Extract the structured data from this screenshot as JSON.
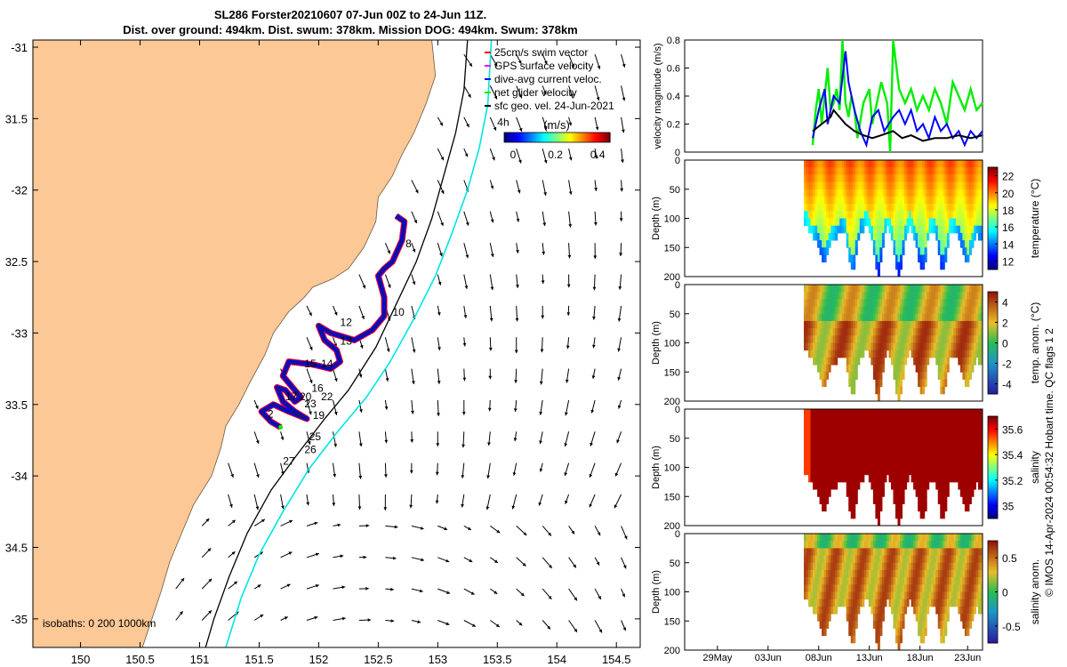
{
  "figure": {
    "title_line1": "SL286 Forster20210607 07-Jun 00Z to 24-Jun 11Z.",
    "title_line2": "Dist. over ground: 494km. Dist. swum: 378km. Mission DOG: 494km. Swum: 378km",
    "side_note": "© IMOS 14-Apr-2024 00:54:32 Hobart time. QC flags 1  2"
  },
  "chart_data": [
    {
      "id": "map",
      "type": "scatter",
      "title": "",
      "xlim": [
        149.6,
        154.7
      ],
      "ylim": [
        -35.2,
        -30.95
      ],
      "xticks": [
        150,
        150.5,
        151,
        151.5,
        152,
        152.5,
        153,
        153.5,
        154,
        154.5
      ],
      "xtick_labels": [
        "150",
        "150.5",
        "151",
        "151.5",
        "152",
        "152.5",
        "153",
        "153.5",
        "154",
        "154.5"
      ],
      "yticks": [
        -31,
        -31.5,
        -32,
        -32.5,
        -33,
        -33.5,
        -34,
        -34.5,
        -35
      ],
      "ytick_labels": [
        "-31",
        "31.5",
        "-32",
        "32.5",
        "-33",
        "33.5",
        "-34",
        "34.5",
        "-35"
      ],
      "legend": [
        {
          "label": "25cm/s swim vector",
          "color": "#ff0000"
        },
        {
          "label": "GPS surface velocity",
          "color": "#ff00ff"
        },
        {
          "label": "dive-avg current veloc.",
          "color": "#0000ff"
        },
        {
          "label": "net glider velocity",
          "color": "#00ee00"
        },
        {
          "label": "sfc geo. vel. 24-Jun-2021",
          "color": "#000000"
        }
      ],
      "colorbar": {
        "label": "(m/s)",
        "ticks": [
          0,
          0.2,
          0.4
        ],
        "tick_labels": [
          "0",
          "0.2",
          "0.4"
        ],
        "range": [
          0,
          0.5
        ]
      },
      "isobaths_note": "isobaths: 0   200  1000km",
      "coastline": [
        [
          152.95,
          -30.95
        ],
        [
          152.98,
          -31.2
        ],
        [
          152.9,
          -31.4
        ],
        [
          152.8,
          -31.6
        ],
        [
          152.7,
          -31.75
        ],
        [
          152.62,
          -31.9
        ],
        [
          152.5,
          -32.05
        ],
        [
          152.48,
          -32.22
        ],
        [
          152.38,
          -32.4
        ],
        [
          152.25,
          -32.55
        ],
        [
          152.12,
          -32.62
        ],
        [
          151.95,
          -32.68
        ],
        [
          151.88,
          -32.75
        ],
        [
          151.75,
          -32.85
        ],
        [
          151.62,
          -33.0
        ],
        [
          151.55,
          -33.15
        ],
        [
          151.42,
          -33.35
        ],
        [
          151.33,
          -33.5
        ],
        [
          151.22,
          -33.65
        ],
        [
          151.18,
          -33.8
        ],
        [
          151.1,
          -34.0
        ],
        [
          150.95,
          -34.2
        ],
        [
          150.85,
          -34.4
        ],
        [
          150.75,
          -34.6
        ],
        [
          150.68,
          -34.8
        ],
        [
          150.6,
          -35.0
        ],
        [
          150.52,
          -35.2
        ]
      ],
      "isobath_200": [
        [
          153.25,
          -30.95
        ],
        [
          153.22,
          -31.3
        ],
        [
          153.15,
          -31.6
        ],
        [
          153.05,
          -31.9
        ],
        [
          152.95,
          -32.2
        ],
        [
          152.82,
          -32.5
        ],
        [
          152.65,
          -32.8
        ],
        [
          152.48,
          -33.1
        ],
        [
          152.25,
          -33.4
        ],
        [
          152.05,
          -33.6
        ],
        [
          151.82,
          -33.85
        ],
        [
          151.6,
          -34.1
        ],
        [
          151.4,
          -34.4
        ],
        [
          151.25,
          -34.7
        ],
        [
          151.12,
          -35.0
        ],
        [
          151.05,
          -35.2
        ]
      ],
      "isobath_1000": [
        [
          153.45,
          -30.95
        ],
        [
          153.42,
          -31.4
        ],
        [
          153.35,
          -31.7
        ],
        [
          153.25,
          -32.0
        ],
        [
          153.12,
          -32.3
        ],
        [
          152.98,
          -32.6
        ],
        [
          152.8,
          -32.9
        ],
        [
          152.6,
          -33.2
        ],
        [
          152.4,
          -33.45
        ],
        [
          152.15,
          -33.7
        ],
        [
          151.92,
          -33.95
        ],
        [
          151.7,
          -34.25
        ],
        [
          151.5,
          -34.55
        ],
        [
          151.35,
          -34.85
        ],
        [
          151.22,
          -35.2
        ]
      ],
      "track": [
        [
          152.65,
          -32.18
        ],
        [
          152.72,
          -32.22
        ],
        [
          152.7,
          -32.35
        ],
        [
          152.62,
          -32.5
        ],
        [
          152.55,
          -32.55
        ],
        [
          152.5,
          -32.6
        ],
        [
          152.55,
          -32.75
        ],
        [
          152.55,
          -32.88
        ],
        [
          152.45,
          -32.98
        ],
        [
          152.3,
          -33.05
        ],
        [
          152.1,
          -33.0
        ],
        [
          152.0,
          -32.95
        ],
        [
          152.05,
          -33.05
        ],
        [
          152.15,
          -33.12
        ],
        [
          152.18,
          -33.2
        ],
        [
          152.1,
          -33.25
        ],
        [
          151.95,
          -33.22
        ],
        [
          151.75,
          -33.2
        ],
        [
          151.7,
          -33.3
        ],
        [
          151.78,
          -33.38
        ],
        [
          151.85,
          -33.45
        ],
        [
          151.8,
          -33.48
        ],
        [
          151.72,
          -33.4
        ],
        [
          151.65,
          -33.38
        ],
        [
          151.7,
          -33.48
        ],
        [
          151.8,
          -33.55
        ],
        [
          151.9,
          -33.6
        ],
        [
          151.75,
          -33.55
        ],
        [
          151.62,
          -33.5
        ],
        [
          151.52,
          -33.55
        ],
        [
          151.6,
          -33.62
        ],
        [
          151.68,
          -33.66
        ]
      ],
      "track_labels": [
        {
          "text": "8",
          "x": 152.73,
          "y": -32.4
        },
        {
          "text": "10",
          "x": 152.62,
          "y": -32.88
        },
        {
          "text": "12",
          "x": 152.18,
          "y": -32.95
        },
        {
          "text": "13",
          "x": 152.18,
          "y": -33.08
        },
        {
          "text": "14",
          "x": 152.02,
          "y": -33.24
        },
        {
          "text": "15",
          "x": 151.88,
          "y": -33.24
        },
        {
          "text": "16",
          "x": 151.94,
          "y": -33.41
        },
        {
          "text": "17",
          "x": 151.72,
          "y": -33.47
        },
        {
          "text": "20",
          "x": 151.84,
          "y": -33.47
        },
        {
          "text": "22",
          "x": 152.02,
          "y": -33.47
        },
        {
          "text": "23",
          "x": 151.88,
          "y": -33.52
        },
        {
          "text": "19",
          "x": 151.95,
          "y": -33.6
        },
        {
          "text": "2",
          "x": 151.57,
          "y": -33.59
        },
        {
          "text": "25",
          "x": 151.92,
          "y": -33.75
        },
        {
          "text": "26",
          "x": 151.88,
          "y": -33.84
        },
        {
          "text": "27",
          "x": 151.7,
          "y": -33.92
        },
        {
          "text": "4h",
          "x": 153.5,
          "y": -31.55
        }
      ]
    },
    {
      "id": "velocity",
      "type": "line",
      "ylabel": "velocity magnitude (m/s)",
      "ylim": [
        0,
        0.8
      ],
      "yticks": [
        0,
        0.2,
        0.4,
        0.6,
        0.8
      ],
      "ytick_labels": [
        "0",
        "0.2",
        "0.4",
        "0.6",
        "0.8"
      ],
      "xlim": [
        0,
        1
      ],
      "series": [
        {
          "color": "#00ee00",
          "values": [
            [
              0.43,
              0.05
            ],
            [
              0.44,
              0.3
            ],
            [
              0.45,
              0.45
            ],
            [
              0.46,
              0.2
            ],
            [
              0.47,
              0.4
            ],
            [
              0.48,
              0.6
            ],
            [
              0.49,
              0.3
            ],
            [
              0.5,
              0.35
            ],
            [
              0.51,
              0.45
            ],
            [
              0.52,
              0.3
            ],
            [
              0.53,
              0.8
            ],
            [
              0.54,
              0.35
            ],
            [
              0.55,
              0.25
            ],
            [
              0.56,
              0.4
            ],
            [
              0.57,
              0.3
            ],
            [
              0.58,
              0.1
            ],
            [
              0.6,
              0.35
            ],
            [
              0.62,
              0.45
            ],
            [
              0.63,
              0.2
            ],
            [
              0.65,
              0.4
            ],
            [
              0.66,
              0.5
            ],
            [
              0.68,
              0.35
            ],
            [
              0.69,
              0.0
            ],
            [
              0.7,
              0.8
            ],
            [
              0.72,
              0.45
            ],
            [
              0.74,
              0.35
            ],
            [
              0.76,
              0.45
            ],
            [
              0.78,
              0.3
            ],
            [
              0.8,
              0.4
            ],
            [
              0.82,
              0.3
            ],
            [
              0.84,
              0.45
            ],
            [
              0.86,
              0.35
            ],
            [
              0.88,
              0.2
            ],
            [
              0.9,
              0.5
            ],
            [
              0.92,
              0.4
            ],
            [
              0.94,
              0.3
            ],
            [
              0.96,
              0.45
            ],
            [
              0.98,
              0.3
            ],
            [
              1.0,
              0.35
            ]
          ]
        },
        {
          "color": "#0000ff",
          "values": [
            [
              0.43,
              0.1
            ],
            [
              0.45,
              0.3
            ],
            [
              0.47,
              0.45
            ],
            [
              0.48,
              0.2
            ],
            [
              0.5,
              0.4
            ],
            [
              0.52,
              0.35
            ],
            [
              0.54,
              0.72
            ],
            [
              0.55,
              0.5
            ],
            [
              0.57,
              0.3
            ],
            [
              0.59,
              0.15
            ],
            [
              0.61,
              0.05
            ],
            [
              0.63,
              0.25
            ],
            [
              0.65,
              0.3
            ],
            [
              0.67,
              0.15
            ],
            [
              0.7,
              0.25
            ],
            [
              0.72,
              0.3
            ],
            [
              0.74,
              0.2
            ],
            [
              0.76,
              0.3
            ],
            [
              0.78,
              0.15
            ],
            [
              0.8,
              0.2
            ],
            [
              0.82,
              0.1
            ],
            [
              0.84,
              0.25
            ],
            [
              0.86,
              0.15
            ],
            [
              0.88,
              0.2
            ],
            [
              0.9,
              0.1
            ],
            [
              0.92,
              0.15
            ],
            [
              0.94,
              0.05
            ],
            [
              0.96,
              0.15
            ],
            [
              0.98,
              0.1
            ],
            [
              1.0,
              0.15
            ]
          ]
        },
        {
          "color": "#000000",
          "values": [
            [
              0.43,
              0.15
            ],
            [
              0.46,
              0.2
            ],
            [
              0.49,
              0.25
            ],
            [
              0.5,
              0.3
            ],
            [
              0.52,
              0.25
            ],
            [
              0.54,
              0.2
            ],
            [
              0.57,
              0.15
            ],
            [
              0.6,
              0.12
            ],
            [
              0.63,
              0.1
            ],
            [
              0.66,
              0.12
            ],
            [
              0.7,
              0.15
            ],
            [
              0.73,
              0.1
            ],
            [
              0.76,
              0.12
            ],
            [
              0.8,
              0.08
            ],
            [
              0.84,
              0.1
            ],
            [
              0.88,
              0.1
            ],
            [
              0.92,
              0.12
            ],
            [
              0.96,
              0.1
            ],
            [
              1.0,
              0.12
            ]
          ]
        }
      ]
    },
    {
      "id": "temperature",
      "type": "heatmap",
      "ylabel": "Depth (m)",
      "yticks": [
        0,
        50,
        100,
        150,
        200
      ],
      "ytick_labels": [
        "0",
        "50",
        "100",
        "150",
        "200"
      ],
      "colorbar_label": "temperature (°C)",
      "colorbar_ticks": [
        "22",
        "20",
        "18",
        "16",
        "14",
        "12"
      ],
      "colorbar_range": [
        11,
        23
      ],
      "colormap": "jet"
    },
    {
      "id": "temp_anom",
      "type": "heatmap",
      "ylabel": "Depth (m)",
      "yticks": [
        0,
        50,
        100,
        150,
        200
      ],
      "ytick_labels": [
        "0",
        "50",
        "100",
        "150",
        "200"
      ],
      "colorbar_label": "temp. anom. (°C)",
      "colorbar_ticks": [
        "4",
        "2",
        "0",
        "-2",
        "-4"
      ],
      "colorbar_range": [
        -4,
        4
      ],
      "colormap": "div"
    },
    {
      "id": "salinity",
      "type": "heatmap",
      "ylabel": "Depth (m)",
      "yticks": [
        0,
        50,
        100,
        150,
        200
      ],
      "ytick_labels": [
        "0",
        "50",
        "100",
        "150",
        "200"
      ],
      "colorbar_label": "salinity",
      "colorbar_ticks": [
        "35.6",
        "35.4",
        "35.2",
        "35"
      ],
      "colorbar_range": [
        34.9,
        35.75
      ],
      "colormap": "jet"
    },
    {
      "id": "sal_anom",
      "type": "heatmap",
      "ylabel": "Depth (m)",
      "yticks": [
        0,
        50,
        100,
        150,
        200
      ],
      "ytick_labels": [
        "0",
        "50",
        "100",
        "150",
        "200"
      ],
      "colorbar_label": "salinity anom.",
      "colorbar_ticks": [
        "0.5",
        "0",
        "-0.5"
      ],
      "colorbar_range": [
        -0.5,
        0.5
      ],
      "colormap": "div"
    }
  ],
  "time_axis": {
    "ticks": [
      "29May",
      "03Jun",
      "08Jun",
      "13Jun",
      "18Jun",
      "23Jun"
    ]
  },
  "colors": {
    "land": "#fcc896",
    "isobath_200": "#000000",
    "isobath_1000": "#00e5e5",
    "swim": "#ff0000",
    "current": "#0000ff"
  }
}
